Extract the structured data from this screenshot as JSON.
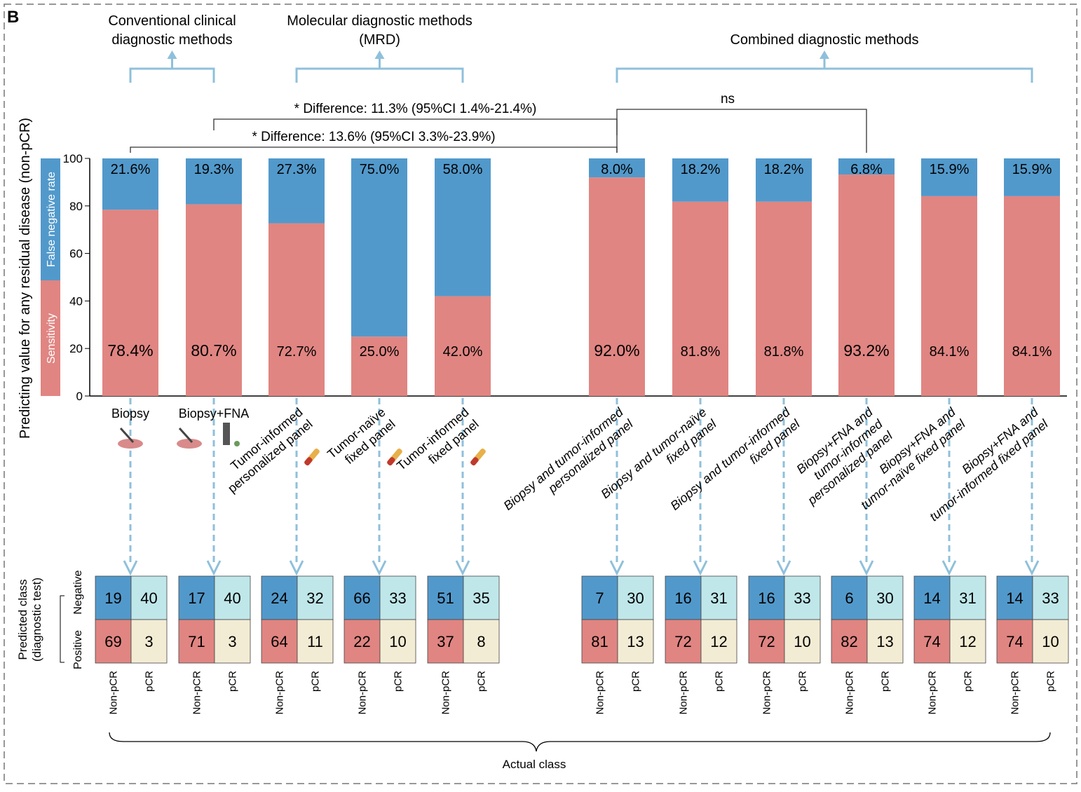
{
  "panel_label": "B",
  "groups": [
    {
      "title": [
        "Conventional clinical",
        "diagnostic methods"
      ],
      "from": 0,
      "to": 1
    },
    {
      "title": [
        "Molecular diagnostic methods",
        "(MRD)"
      ],
      "from": 2,
      "to": 4
    },
    {
      "title": [
        "Combined diagnostic methods"
      ],
      "from": 5,
      "to": 10
    }
  ],
  "comparisons": [
    {
      "label": "Difference: 11.3% (95%CI 1.4%-21.4%)",
      "star": "*",
      "from": 1,
      "to": 5
    },
    {
      "label": "Difference: 13.6% (95%CI 3.3%-23.9%)",
      "star": "*",
      "from": 0,
      "to": 5
    },
    {
      "label": "ns",
      "star": "",
      "from": 5,
      "to": 8
    }
  ],
  "colors": {
    "sensitivity": "#e08582",
    "false_negative": "#5299cb",
    "tn_cell": "#bfe7ea",
    "fp_cell": "#f3ecd4",
    "arrow": "#8fc0db"
  },
  "chart_data": {
    "type": "bar",
    "stacked": true,
    "ylabel": "Predicting value for any residual disease (non-pCR)",
    "ylim": [
      0,
      100
    ],
    "yticks": [
      0,
      20,
      40,
      60,
      80,
      100
    ],
    "legend": {
      "sensitivity": "Sensitivity",
      "false_negative": "False negative rate"
    },
    "categories": [
      {
        "label": [
          "Biopsy"
        ],
        "icon": "biopsy-icon",
        "italic": false
      },
      {
        "label": [
          "Biopsy+FNA"
        ],
        "icon": "biopsy-fna-icon",
        "italic": false
      },
      {
        "label": [
          "Tumor-informed",
          "personalized panel"
        ],
        "icon": "blood-tube-icon",
        "italic": false
      },
      {
        "label": [
          "Tumor-naïve",
          "fixed panel"
        ],
        "icon": "blood-tube-icon",
        "italic": false
      },
      {
        "label": [
          "Tumor-informed",
          "fixed panel"
        ],
        "icon": "blood-tube-icon",
        "italic": false
      },
      {
        "label": [
          "Biopsy and tumor-informed",
          "personalized panel"
        ],
        "italic": true
      },
      {
        "label": [
          "Biopsy and tumor-naïve",
          "fixed panel"
        ],
        "italic": true
      },
      {
        "label": [
          "Biopsy and tumor-informed",
          "fixed panel"
        ],
        "italic": true
      },
      {
        "label": [
          "Biopsy+FNA and",
          "tumor-informed",
          "personalized panel"
        ],
        "italic": true
      },
      {
        "label": [
          "Biopsy+FNA and",
          "tumor-naïve fixed panel"
        ],
        "italic": true
      },
      {
        "label": [
          "Biopsy+FNA and",
          "tumor-informed fixed panel"
        ],
        "italic": true
      }
    ],
    "series": [
      {
        "name": "Sensitivity",
        "values": [
          78.4,
          80.7,
          72.7,
          25.0,
          42.0,
          92.0,
          81.8,
          81.8,
          93.2,
          84.1,
          84.1
        ],
        "labels": [
          "78.4%",
          "80.7%",
          "72.7%",
          "25.0%",
          "42.0%",
          "92.0%",
          "81.8%",
          "81.8%",
          "93.2%",
          "84.1%",
          "84.1%"
        ]
      },
      {
        "name": "False negative rate",
        "values": [
          21.6,
          19.3,
          27.3,
          75.0,
          58.0,
          8.0,
          18.2,
          18.2,
          6.8,
          15.9,
          15.9
        ],
        "labels": [
          "21.6%",
          "19.3%",
          "27.3%",
          "75.0%",
          "58.0%",
          "8.0%",
          "18.2%",
          "18.2%",
          "6.8%",
          "15.9%",
          "15.9%"
        ]
      }
    ]
  },
  "confusion": {
    "predicted_label": [
      "Predicted class",
      "(diagnostic test)"
    ],
    "row_labels": [
      "Negative",
      "Positive"
    ],
    "col_labels": [
      "Non-pCR",
      "pCR"
    ],
    "actual_label": "Actual class",
    "matrices": [
      [
        [
          19,
          40
        ],
        [
          69,
          3
        ]
      ],
      [
        [
          17,
          40
        ],
        [
          71,
          3
        ]
      ],
      [
        [
          24,
          32
        ],
        [
          64,
          11
        ]
      ],
      [
        [
          66,
          33
        ],
        [
          22,
          10
        ]
      ],
      [
        [
          51,
          35
        ],
        [
          37,
          8
        ]
      ],
      [
        [
          7,
          30
        ],
        [
          81,
          13
        ]
      ],
      [
        [
          16,
          31
        ],
        [
          72,
          12
        ]
      ],
      [
        [
          16,
          33
        ],
        [
          72,
          10
        ]
      ],
      [
        [
          6,
          30
        ],
        [
          82,
          13
        ]
      ],
      [
        [
          14,
          31
        ],
        [
          74,
          12
        ]
      ],
      [
        [
          14,
          33
        ],
        [
          74,
          10
        ]
      ]
    ]
  }
}
